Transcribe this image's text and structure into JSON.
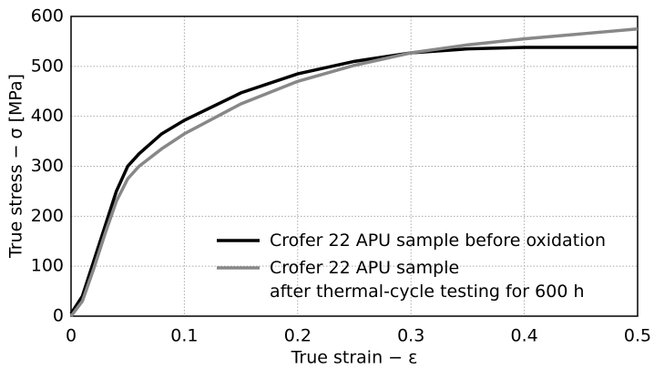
{
  "chart_data": {
    "type": "line",
    "xlabel": "True strain − ε",
    "ylabel": "True stress − σ [MPa]",
    "x": [
      0,
      0.01,
      0.02,
      0.03,
      0.04,
      0.05,
      0.06,
      0.08,
      0.1,
      0.15,
      0.2,
      0.25,
      0.3,
      0.35,
      0.4,
      0.45,
      0.5
    ],
    "series": [
      {
        "name": "Crofer 22 APU sample before oxidation",
        "color": "#000000",
        "values": [
          5,
          40,
          110,
          180,
          250,
          300,
          325,
          365,
          392,
          447,
          485,
          510,
          527,
          535,
          538,
          538,
          538
        ]
      },
      {
        "name": "Crofer 22 APU sample\nafter thermal-cycle testing for 600 h",
        "color": "#888888",
        "values": [
          0,
          30,
          95,
          165,
          230,
          275,
          300,
          335,
          365,
          425,
          470,
          502,
          527,
          543,
          555,
          565,
          575
        ]
      }
    ],
    "xlim": [
      0,
      0.5
    ],
    "xticks": [
      0,
      0.1,
      0.2,
      0.3,
      0.4,
      0.5
    ],
    "ylim": [
      0,
      600
    ],
    "yticks": [
      0,
      100,
      200,
      300,
      400,
      500,
      600
    ],
    "grid": true,
    "legend": "lower right"
  }
}
